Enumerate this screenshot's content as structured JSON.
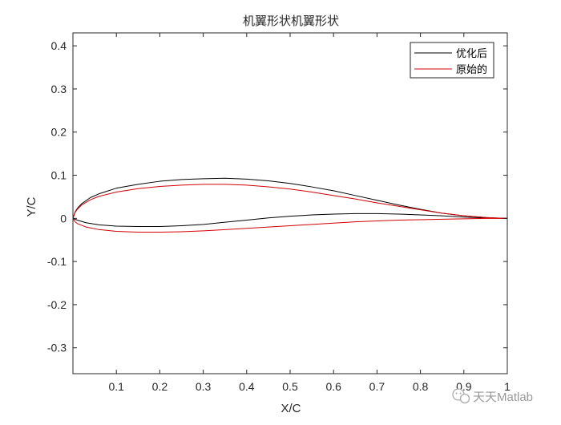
{
  "chart_data": {
    "type": "line",
    "title": "机翼形状机翼形状",
    "xlabel": "X/C",
    "ylabel": "Y/C",
    "xlim": [
      0,
      1
    ],
    "ylim": [
      -0.36,
      0.43
    ],
    "xticks": [
      0.1,
      0.2,
      0.3,
      0.4,
      0.5,
      0.6,
      0.7,
      0.8,
      0.9,
      1
    ],
    "xtick_labels": [
      "0.1",
      "0.2",
      "0.3",
      "0.4",
      "0.5",
      "0.6",
      "0.7",
      "0.8",
      "0.9",
      "1"
    ],
    "yticks": [
      0.4,
      0.3,
      0.2,
      0.1,
      0,
      -0.1,
      -0.2,
      -0.3
    ],
    "ytick_labels": [
      "0.4",
      "0.3",
      "0.2",
      "0.1",
      "0",
      "-0.1",
      "-0.2",
      "-0.3"
    ],
    "grid": false,
    "legend_position": "top-right",
    "series": [
      {
        "name": "优化后",
        "color": "#000000",
        "upper": {
          "x": [
            0,
            0.005,
            0.01,
            0.02,
            0.04,
            0.06,
            0.1,
            0.15,
            0.2,
            0.25,
            0.3,
            0.35,
            0.4,
            0.45,
            0.5,
            0.55,
            0.6,
            0.65,
            0.7,
            0.75,
            0.8,
            0.85,
            0.9,
            0.95,
            0.97,
            1
          ],
          "y": [
            0,
            0.015,
            0.023,
            0.034,
            0.048,
            0.057,
            0.07,
            0.079,
            0.086,
            0.09,
            0.092,
            0.093,
            0.091,
            0.087,
            0.081,
            0.073,
            0.064,
            0.053,
            0.042,
            0.031,
            0.021,
            0.012,
            0.006,
            0.002,
            0.001,
            0
          ]
        },
        "lower": {
          "x": [
            0,
            0.01,
            0.03,
            0.06,
            0.1,
            0.15,
            0.2,
            0.25,
            0.3,
            0.35,
            0.4,
            0.45,
            0.5,
            0.55,
            0.6,
            0.65,
            0.7,
            0.75,
            0.8,
            0.85,
            0.9,
            0.95,
            1
          ],
          "y": [
            0,
            -0.004,
            -0.01,
            -0.015,
            -0.018,
            -0.019,
            -0.019,
            -0.017,
            -0.014,
            -0.009,
            -0.004,
            0.001,
            0.005,
            0.008,
            0.01,
            0.011,
            0.011,
            0.01,
            0.008,
            0.006,
            0.003,
            0.001,
            0
          ]
        }
      },
      {
        "name": "原始的",
        "color": "#d40000",
        "upper": {
          "x": [
            0,
            0.005,
            0.01,
            0.02,
            0.04,
            0.06,
            0.1,
            0.15,
            0.2,
            0.25,
            0.3,
            0.35,
            0.4,
            0.45,
            0.5,
            0.55,
            0.6,
            0.65,
            0.7,
            0.75,
            0.8,
            0.85,
            0.9,
            0.95,
            0.97,
            1
          ],
          "y": [
            0,
            0.014,
            0.021,
            0.031,
            0.043,
            0.051,
            0.061,
            0.069,
            0.074,
            0.077,
            0.079,
            0.079,
            0.077,
            0.073,
            0.068,
            0.061,
            0.053,
            0.045,
            0.036,
            0.028,
            0.02,
            0.012,
            0.006,
            0.002,
            0.001,
            0
          ]
        },
        "lower": {
          "x": [
            0,
            0.005,
            0.01,
            0.03,
            0.06,
            0.1,
            0.15,
            0.2,
            0.25,
            0.3,
            0.35,
            0.4,
            0.45,
            0.5,
            0.55,
            0.6,
            0.65,
            0.7,
            0.75,
            0.8,
            0.85,
            0.9,
            0.95,
            1
          ],
          "y": [
            0,
            -0.008,
            -0.012,
            -0.02,
            -0.026,
            -0.03,
            -0.032,
            -0.032,
            -0.031,
            -0.029,
            -0.026,
            -0.023,
            -0.02,
            -0.017,
            -0.014,
            -0.011,
            -0.008,
            -0.006,
            -0.004,
            -0.003,
            -0.002,
            -0.001,
            0,
            0
          ]
        }
      }
    ]
  },
  "watermark": {
    "text": "天天Matlab",
    "icon": "wechat-icon"
  }
}
